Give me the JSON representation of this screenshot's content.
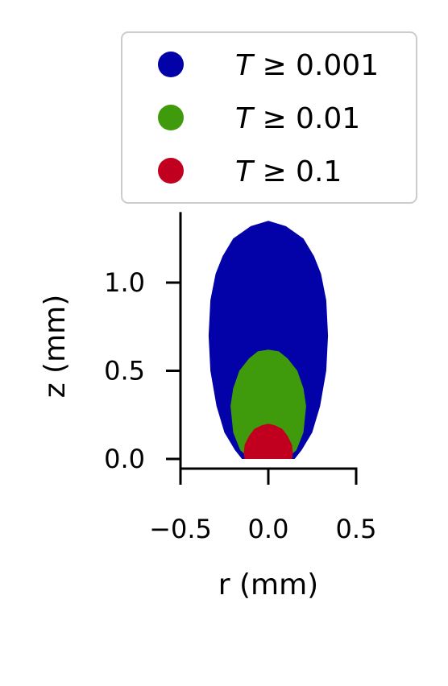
{
  "chart_data": {
    "type": "area",
    "xlabel": "r (mm)",
    "ylabel": "z (mm)",
    "xlim": [
      -0.5,
      0.5
    ],
    "ylim": [
      -0.05,
      1.4
    ],
    "xticks": [
      -0.5,
      0.0,
      0.5
    ],
    "xtick_labels": [
      "−0.5",
      "0.0",
      "0.5"
    ],
    "yticks": [
      0.0,
      0.5,
      1.0
    ],
    "ytick_labels": [
      "0.0",
      "0.5",
      "1.0"
    ],
    "grid": false,
    "legend_position": "top",
    "series": [
      {
        "name": "T ≥ 0.001",
        "label_var": "T",
        "label_rest": " ≥ 0.001",
        "color": "#0202a8",
        "radius_profile": [
          {
            "z": 0.0,
            "r": 0.15
          },
          {
            "z": 0.05,
            "r": 0.19
          },
          {
            "z": 0.15,
            "r": 0.25
          },
          {
            "z": 0.3,
            "r": 0.295
          },
          {
            "z": 0.5,
            "r": 0.33
          },
          {
            "z": 0.7,
            "r": 0.34
          },
          {
            "z": 0.9,
            "r": 0.33
          },
          {
            "z": 1.05,
            "r": 0.3
          },
          {
            "z": 1.15,
            "r": 0.26
          },
          {
            "z": 1.25,
            "r": 0.2
          },
          {
            "z": 1.32,
            "r": 0.1
          },
          {
            "z": 1.35,
            "r": 0.0
          }
        ]
      },
      {
        "name": "T ≥ 0.01",
        "label_var": "T",
        "label_rest": " ≥ 0.01",
        "color": "#3f9b0b",
        "radius_profile": [
          {
            "z": 0.0,
            "r": 0.105
          },
          {
            "z": 0.05,
            "r": 0.16
          },
          {
            "z": 0.15,
            "r": 0.2
          },
          {
            "z": 0.3,
            "r": 0.215
          },
          {
            "z": 0.4,
            "r": 0.2
          },
          {
            "z": 0.5,
            "r": 0.165
          },
          {
            "z": 0.57,
            "r": 0.11
          },
          {
            "z": 0.61,
            "r": 0.06
          },
          {
            "z": 0.62,
            "r": 0.0
          }
        ]
      },
      {
        "name": "T ≥ 0.1",
        "label_var": "T",
        "label_rest": " ≥ 0.1",
        "color": "#c0001e",
        "radius_profile": [
          {
            "z": 0.0,
            "r": 0.135
          },
          {
            "z": 0.03,
            "r": 0.14
          },
          {
            "z": 0.08,
            "r": 0.135
          },
          {
            "z": 0.13,
            "r": 0.11
          },
          {
            "z": 0.17,
            "r": 0.08
          },
          {
            "z": 0.19,
            "r": 0.04
          },
          {
            "z": 0.2,
            "r": 0.0
          }
        ]
      }
    ]
  }
}
